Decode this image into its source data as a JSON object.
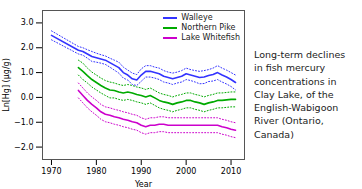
{
  "chart_data": {
    "type": "line",
    "title": "Long-term declines\nin fish mercury\nconcentrations in\nClay Lake, of the\nEnglish-Wabigoon\nRiver (Ontario,\nCanada)",
    "x_label": "Year",
    "y_label": "Ln[Hg] (μg/g)",
    "xlim": [
      1968,
      2013
    ],
    "ylim": [
      -2.5,
      3.5
    ],
    "xticks": [
      1970,
      1980,
      1990,
      2000,
      2010
    ],
    "yticks": [
      -2,
      -1,
      0,
      1,
      2,
      3
    ],
    "legend": "upper right",
    "series": [
      {
        "name": "Walleye",
        "color": "#3333ff",
        "x": [
          1970,
          1976,
          1977,
          1978,
          1979,
          1980,
          1981,
          1982,
          1983,
          1984,
          1985,
          1986,
          1987,
          1988,
          1989,
          1990,
          1991,
          1992,
          1993,
          1994,
          1995,
          1996,
          1997,
          1998,
          1999,
          2000,
          2001,
          2002,
          2003,
          2004,
          2005,
          2006,
          2007,
          2008,
          2009,
          2010,
          2011
        ],
        "values": [
          2.5,
          1.9,
          1.85,
          1.75,
          1.65,
          1.6,
          1.55,
          1.5,
          1.4,
          1.3,
          1.2,
          1.0,
          0.9,
          0.75,
          0.7,
          0.9,
          1.05,
          1.05,
          1.0,
          0.95,
          0.85,
          0.8,
          0.75,
          0.8,
          0.85,
          0.95,
          0.9,
          0.85,
          0.8,
          0.82,
          0.88,
          0.92,
          1.0,
          0.9,
          0.82,
          0.72,
          0.6
        ],
        "upper": [
          2.68,
          2.05,
          2.0,
          1.92,
          1.85,
          1.78,
          1.72,
          1.67,
          1.58,
          1.5,
          1.42,
          1.22,
          1.1,
          0.98,
          0.92,
          1.15,
          1.28,
          1.28,
          1.22,
          1.18,
          1.08,
          1.02,
          0.98,
          1.02,
          1.08,
          1.18,
          1.12,
          1.08,
          1.05,
          1.08,
          1.12,
          1.18,
          1.28,
          1.18,
          1.1,
          1.0,
          0.9
        ],
        "lower": [
          2.32,
          1.75,
          1.7,
          1.58,
          1.45,
          1.42,
          1.38,
          1.33,
          1.22,
          1.1,
          0.98,
          0.78,
          0.7,
          0.52,
          0.48,
          0.65,
          0.82,
          0.82,
          0.78,
          0.72,
          0.62,
          0.58,
          0.52,
          0.58,
          0.62,
          0.72,
          0.68,
          0.62,
          0.55,
          0.56,
          0.64,
          0.66,
          0.72,
          0.62,
          0.54,
          0.44,
          0.3
        ]
      },
      {
        "name": "Northern Pike",
        "color": "#00aa00",
        "x": [
          1976,
          1977,
          1978,
          1979,
          1980,
          1981,
          1982,
          1983,
          1984,
          1985,
          1986,
          1987,
          1988,
          1989,
          1990,
          1991,
          1992,
          1993,
          1994,
          1995,
          1996,
          1997,
          1998,
          1999,
          2000,
          2001,
          2002,
          2003,
          2004,
          2005,
          2006,
          2007,
          2008,
          2009,
          2010,
          2011
        ],
        "values": [
          1.2,
          1.05,
          0.88,
          0.72,
          0.6,
          0.48,
          0.38,
          0.3,
          0.28,
          0.22,
          0.18,
          0.22,
          0.18,
          0.12,
          0.08,
          0.02,
          0.08,
          -0.02,
          -0.12,
          -0.18,
          -0.22,
          -0.28,
          -0.22,
          -0.18,
          -0.12,
          -0.12,
          -0.18,
          -0.22,
          -0.28,
          -0.22,
          -0.18,
          -0.12,
          -0.12,
          -0.1,
          -0.08,
          -0.08
        ],
        "upper": [
          1.5,
          1.38,
          1.18,
          1.02,
          0.9,
          0.78,
          0.68,
          0.62,
          0.58,
          0.52,
          0.48,
          0.52,
          0.48,
          0.42,
          0.38,
          0.32,
          0.38,
          0.28,
          0.18,
          0.12,
          0.08,
          0.02,
          0.08,
          0.12,
          0.18,
          0.18,
          0.12,
          0.08,
          0.02,
          0.08,
          0.12,
          0.18,
          0.18,
          0.2,
          0.22,
          0.22
        ],
        "lower": [
          0.9,
          0.72,
          0.58,
          0.42,
          0.3,
          0.18,
          0.08,
          -0.02,
          -0.02,
          -0.08,
          -0.12,
          -0.08,
          -0.12,
          -0.18,
          -0.22,
          -0.28,
          -0.22,
          -0.32,
          -0.42,
          -0.48,
          -0.52,
          -0.58,
          -0.52,
          -0.48,
          -0.42,
          -0.42,
          -0.48,
          -0.52,
          -0.58,
          -0.52,
          -0.48,
          -0.42,
          -0.42,
          -0.4,
          -0.38,
          -0.38
        ]
      },
      {
        "name": "Lake Whitefish",
        "color": "#cc00cc",
        "x": [
          1976,
          1977,
          1978,
          1979,
          1980,
          1981,
          1982,
          1983,
          1984,
          1985,
          1986,
          1987,
          1988,
          1989,
          1990,
          1991,
          1992,
          1993,
          1994,
          1995,
          1996,
          1997,
          1998,
          1999,
          2000,
          2001,
          2002,
          2003,
          2004,
          2005,
          2006,
          2007,
          2008,
          2009,
          2010,
          2011
        ],
        "values": [
          0.28,
          0.08,
          -0.12,
          -0.28,
          -0.42,
          -0.58,
          -0.68,
          -0.72,
          -0.78,
          -0.82,
          -0.88,
          -0.92,
          -0.98,
          -1.02,
          -1.12,
          -1.18,
          -1.12,
          -1.12,
          -1.08,
          -1.08,
          -1.12,
          -1.12,
          -1.12,
          -1.12,
          -1.12,
          -1.12,
          -1.12,
          -1.12,
          -1.12,
          -1.12,
          -1.12,
          -1.12,
          -1.18,
          -1.22,
          -1.28,
          -1.32
        ],
        "upper": [
          0.58,
          0.38,
          0.18,
          0.02,
          -0.12,
          -0.28,
          -0.38,
          -0.42,
          -0.48,
          -0.52,
          -0.58,
          -0.62,
          -0.68,
          -0.72,
          -0.82,
          -0.88,
          -0.82,
          -0.82,
          -0.78,
          -0.78,
          -0.82,
          -0.82,
          -0.82,
          -0.82,
          -0.82,
          -0.82,
          -0.82,
          -0.82,
          -0.82,
          -0.82,
          -0.82,
          -0.82,
          -0.88,
          -0.92,
          -0.98,
          -1.02
        ],
        "lower": [
          -0.02,
          -0.22,
          -0.42,
          -0.58,
          -0.72,
          -0.88,
          -0.98,
          -1.02,
          -1.08,
          -1.12,
          -1.18,
          -1.22,
          -1.28,
          -1.32,
          -1.42,
          -1.48,
          -1.42,
          -1.42,
          -1.38,
          -1.38,
          -1.42,
          -1.42,
          -1.42,
          -1.42,
          -1.42,
          -1.42,
          -1.42,
          -1.42,
          -1.42,
          -1.42,
          -1.42,
          -1.42,
          -1.48,
          -1.52,
          -1.58,
          -1.62
        ]
      }
    ]
  }
}
